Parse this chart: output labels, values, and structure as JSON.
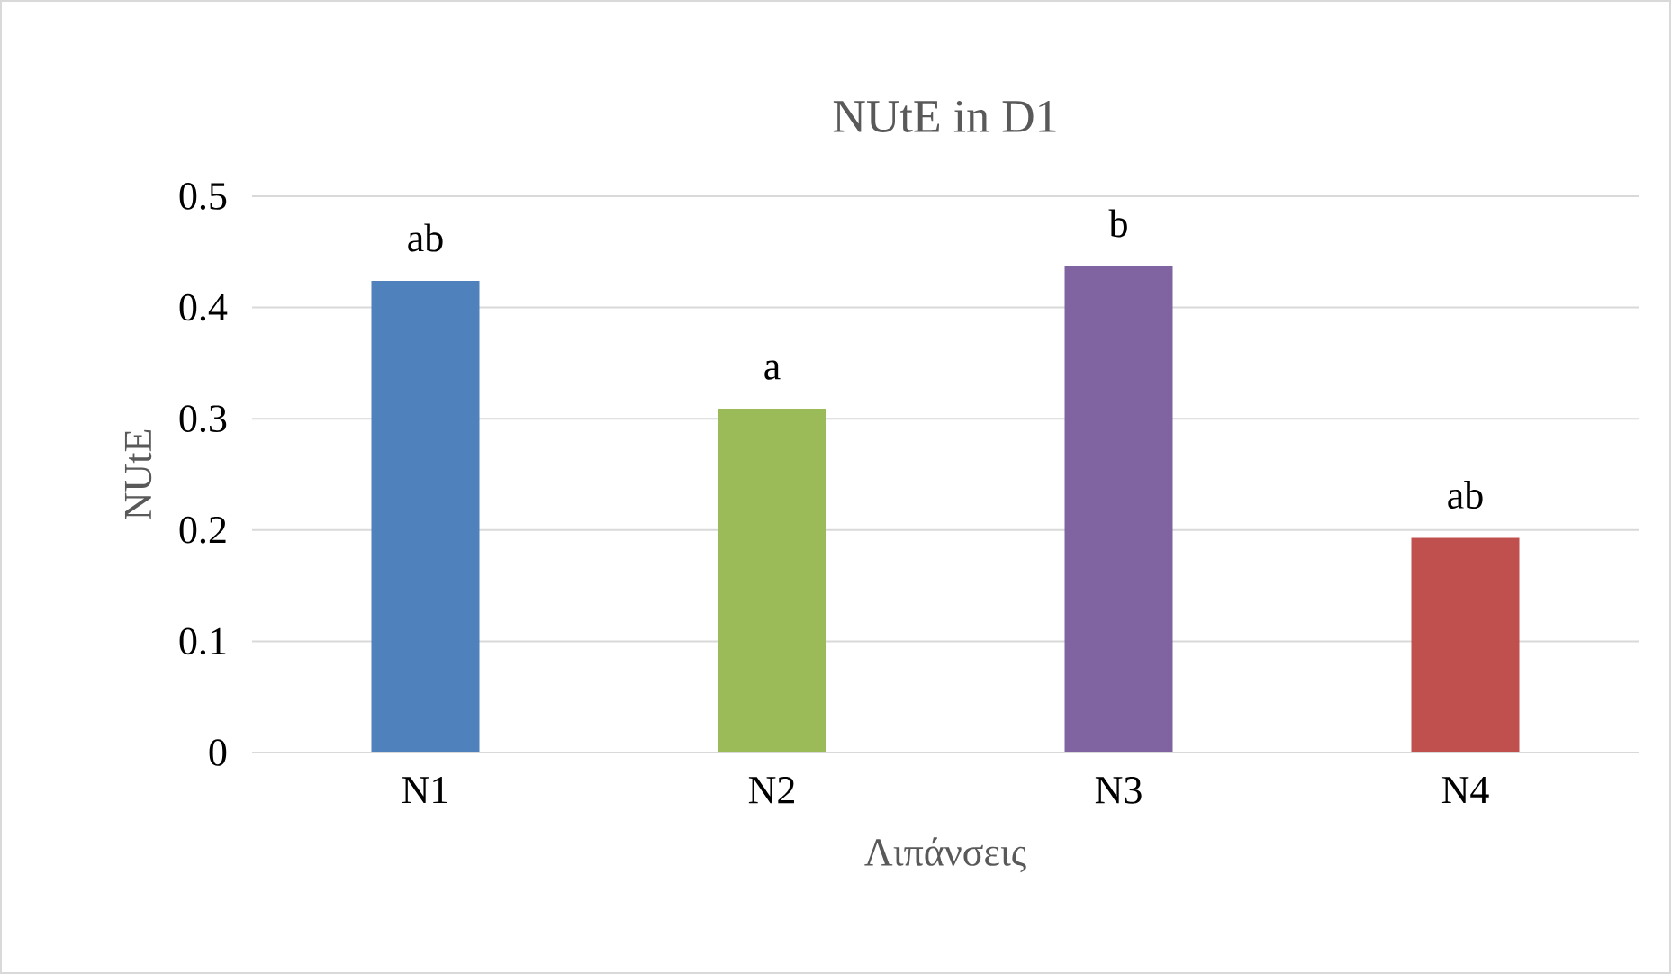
{
  "chart_data": {
    "type": "bar",
    "title": "NUtE in D1",
    "xlabel": "Λιπάνσεις",
    "ylabel": "NUtE",
    "categories": [
      "N1",
      "N2",
      "N3",
      "N4"
    ],
    "values": [
      0.424,
      0.309,
      0.437,
      0.193
    ],
    "colors": [
      "#4f81bd",
      "#9bbb59",
      "#8064a2",
      "#c0504d"
    ],
    "ylim": [
      0,
      0.5
    ],
    "yticks": [
      0,
      0.1,
      0.2,
      0.3,
      0.4,
      0.5
    ],
    "grid": "y",
    "annotations": [
      {
        "text": "ab",
        "x": "N1",
        "y": 0.424
      },
      {
        "text": "a",
        "x": "N2",
        "y": 0.309
      },
      {
        "text": "b",
        "x": "N3",
        "y": 0.437
      },
      {
        "text": "ab",
        "x": "N4",
        "y": 0.193
      }
    ]
  }
}
